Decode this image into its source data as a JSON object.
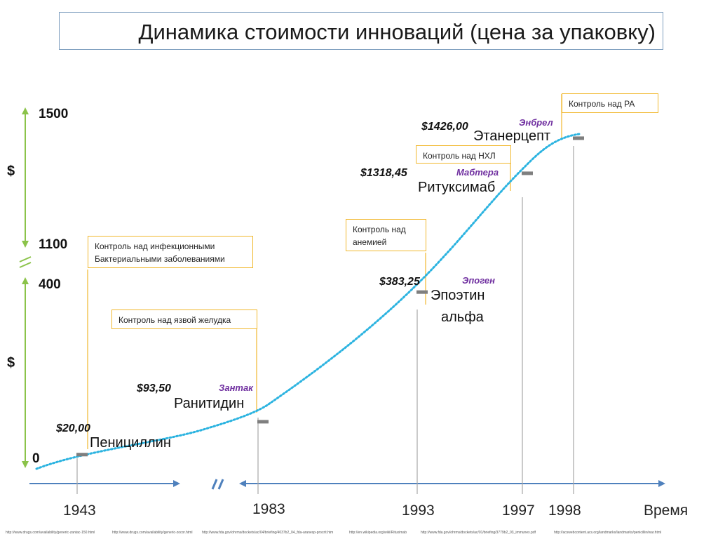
{
  "title": "Динамика стоимости инноваций (цена за упаковку)",
  "y_axis": {
    "unit_label": "$",
    "ticks": [
      "0",
      "400",
      "1100",
      "1500"
    ]
  },
  "x_axis": {
    "label": "Время",
    "ticks": [
      "1943",
      "1983",
      "1993",
      "1997",
      "1998"
    ]
  },
  "chart_data": {
    "type": "line",
    "x_label": "Время",
    "y_label": "$",
    "y_segments": [
      {
        "range": [
          0,
          400
        ],
        "note": "lower segment"
      },
      {
        "range": [
          1100,
          1500
        ],
        "note": "upper segment"
      }
    ],
    "axis_break": true,
    "points": [
      {
        "year": 1943,
        "value": 20.0,
        "price_label": "$20,00",
        "drug": "Пенициллин",
        "brand": ""
      },
      {
        "year": 1983,
        "value": 93.5,
        "price_label": "$93,50",
        "drug": "Ранитидин",
        "brand": "Зантак"
      },
      {
        "year": 1993,
        "value": 383.25,
        "price_label": "$383,25",
        "drug": "Эпоэтин альфа",
        "brand": "Эпоген"
      },
      {
        "year": 1997,
        "value": 1318.45,
        "price_label": "$1318,45",
        "drug": "Ритуксимаб",
        "brand": "Мабтера"
      },
      {
        "year": 1998,
        "value": 1426.0,
        "price_label": "$1426,00",
        "drug": "Этанерцепт",
        "brand": "Энбрел"
      }
    ],
    "colors": {
      "trend": "#2bb3e0",
      "y_axis": "#8bc34a",
      "x_axis": "#4f81bd",
      "callout": "#f1b82e",
      "brand": "#7030a0"
    }
  },
  "drugs": {
    "penicillin": {
      "price": "$20,00",
      "name": "Пенициллин",
      "note": [
        "Контроль над инфекционными",
        "Бактериальными заболеваниями"
      ]
    },
    "ranitidine": {
      "price": "$93,50",
      "name": "Ранитидин",
      "brand": "Зантак",
      "note": [
        "Контроль над язвой желудка"
      ]
    },
    "epoetin": {
      "price": "$383,25",
      "name_line1": "Эпоэтин",
      "name_line2": "альфа",
      "brand": "Эпоген",
      "note": [
        "Контроль над",
        "анемией"
      ]
    },
    "rituximab": {
      "price": "$1318,45",
      "name": "Ритуксимаб",
      "brand": "Мабтера",
      "note": [
        "Контроль над НХЛ"
      ]
    },
    "etanercept": {
      "price": "$1426,00",
      "name": "Этанерцепт",
      "brand": "Энбрел",
      "note": [
        "Контроль над РА"
      ]
    }
  },
  "sources": [
    "http://www.drugs.com/availability/generic-zantac-150.html",
    "http://www.drugs.com/availability/generic-zocor.html",
    "http://www.fda.gov/ohrms/dockets/ac/04/briefing/4037b2_04_fda-aranesp-procrit.htm",
    "http://en.wikipedia.org/wiki/Rituximab",
    "http://www.fda.gov/ohrms/dockets/ac/01/briefing/3779b2_03_immunex.pdf",
    "http://acswebcontent.acs.org/landmarks/landmarks/penicillin/war.html"
  ]
}
